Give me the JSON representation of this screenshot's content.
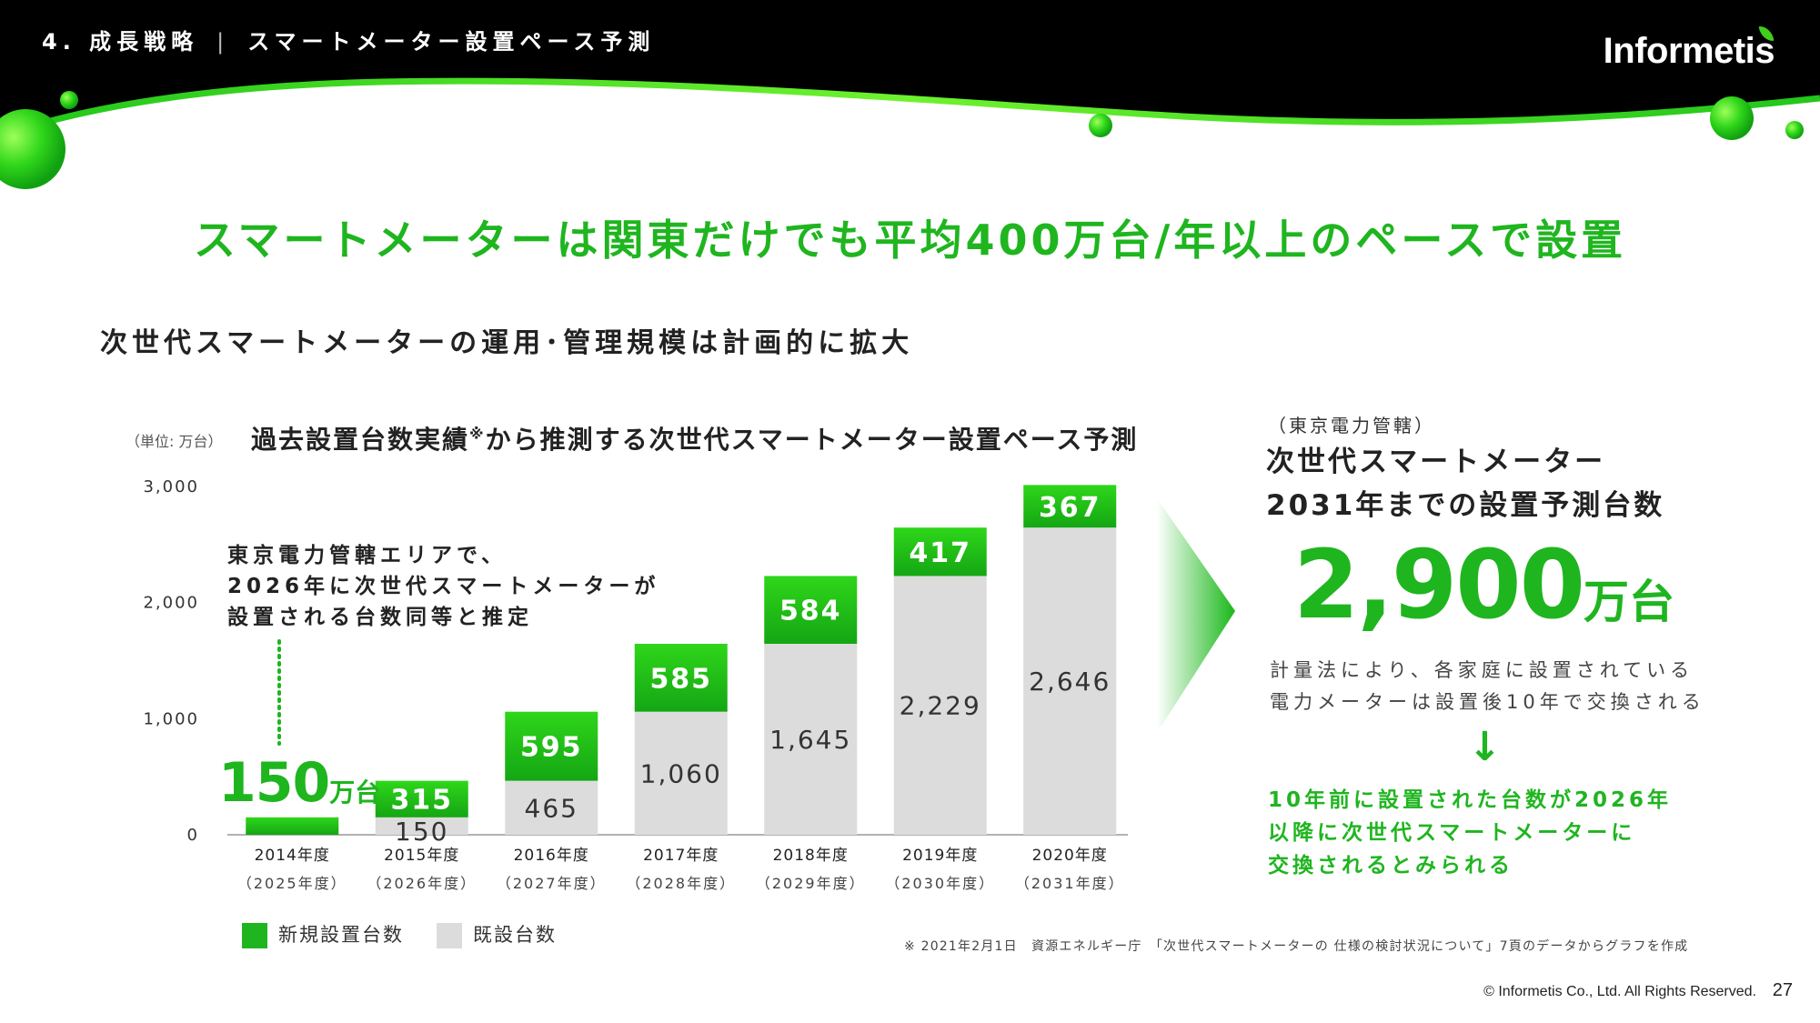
{
  "header": {
    "section": "4. 成長戦略",
    "separator": "|",
    "title": "スマートメーター設置ペース予測",
    "logo": "Informetis"
  },
  "headline": "スマートメーターは関東だけでも平均400万台/年以上のペースで設置",
  "subheading": "次世代スマートメーターの運用･管理規模は計画的に拡大",
  "chart_data": {
    "type": "bar",
    "stacked": true,
    "title": "過去設置台数実績",
    "title_mark": "※",
    "title_suffix": "から推測する次世代スマートメーター設置ペース予測",
    "unit_label": "（単位: 万台）",
    "ylim": [
      0,
      3000
    ],
    "yticks": [
      0,
      1000,
      2000,
      3000
    ],
    "ytick_labels": [
      "0",
      "1,000",
      "2,000",
      "3,000"
    ],
    "categories": [
      "2014年度",
      "2015年度",
      "2016年度",
      "2017年度",
      "2018年度",
      "2019年度",
      "2020年度"
    ],
    "sub_categories": [
      "（2025年度）",
      "（2026年度）",
      "（2027年度）",
      "（2028年度）",
      "（2029年度）",
      "（2030年度）",
      "（2031年度）"
    ],
    "series": [
      {
        "name": "既設台数",
        "color": "#dcdcdc",
        "values": [
          0,
          150,
          465,
          1060,
          1645,
          2229,
          2646
        ],
        "labels": [
          "",
          "150",
          "465",
          "1,060",
          "1,645",
          "2,229",
          "2,646"
        ]
      },
      {
        "name": "新規設置台数",
        "color": "#1fb51f",
        "values": [
          150,
          315,
          595,
          585,
          584,
          417,
          367
        ],
        "labels": [
          "",
          "315",
          "595",
          "585",
          "584",
          "417",
          "367"
        ]
      }
    ],
    "legend_position": "bottom-left",
    "annotation": {
      "lines": [
        "東京電力管轄エリアで、",
        "2026年に次世代スマートメーターが",
        "設置される台数同等と推定"
      ],
      "value": "150",
      "unit": "万台"
    }
  },
  "footnote": "※ 2021年2月1日　資源エネルギー庁　「次世代スマートメーターの 仕様の検討状況について」7頁のデータからグラフを作成",
  "right_panel": {
    "area": "（東京電力管轄）",
    "title_line1": "次世代スマートメーター",
    "title_line2": "2031年までの設置予測台数",
    "big_value": "2,900",
    "big_unit": "万台",
    "note_line1": "計量法により、各家庭に設置されている",
    "note_line2": "電力メーターは設置後10年で交換される",
    "arrow": "↓",
    "conclusion_line1": "10年前に設置された台数が2026年",
    "conclusion_line2": "以降に次世代スマートメーターに",
    "conclusion_line3": "交換されるとみられる"
  },
  "footer": {
    "copyright": "© Informetis Co., Ltd. All Rights Reserved.",
    "page": "27"
  },
  "colors": {
    "brand_green": "#1fb51f",
    "existing_gray": "#dcdcdc",
    "header_black": "#000000"
  }
}
